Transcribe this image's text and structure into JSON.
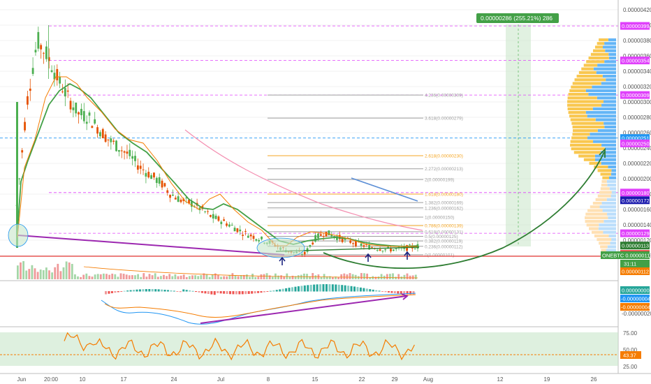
{
  "measure_label": "0.00000286 (255.21%) 286",
  "price_axis_labels": [
    "0.00000420",
    "0.00000400",
    "0.00000380",
    "0.00000360",
    "0.00000340",
    "0.00000320",
    "0.00000300",
    "0.00000280",
    "0.00000260",
    "0.00000240",
    "0.00000220",
    "0.00000200",
    "0.00000180",
    "0.00000160",
    "0.00000140",
    "0.00000120",
    "0.00000100"
  ],
  "price_tags": [
    {
      "text": "0.00000399",
      "color": "#e040fb",
      "price": 399
    },
    {
      "text": "0.00000354",
      "color": "#e040fb",
      "price": 354
    },
    {
      "text": "0.00000309",
      "color": "#e040fb",
      "price": 309
    },
    {
      "text": "0.00000251",
      "color": "#2196f3",
      "price": 253
    },
    {
      "text": "0.00000250",
      "color": "#e040fb",
      "price": 246
    },
    {
      "text": "0.00000180",
      "color": "#e040fb",
      "price": 182
    },
    {
      "text": "0.00000172",
      "color": "#1a1aad",
      "price": 172
    },
    {
      "text": "0.00000129",
      "color": "#e040fb",
      "price": 129
    },
    {
      "text": "0.00000113",
      "color": "#2e7d32",
      "price": 113
    },
    {
      "text": "0.00000112",
      "color": "#e53935",
      "price": 102
    }
  ],
  "symbol_tag": "ONEBTC",
  "symbol_price": "0.00000112",
  "countdown": "31:11",
  "volume_tag": "0.00000112",
  "macd_tags": [
    "0.00000000",
    "-0.00000004",
    "-0.00000004"
  ],
  "macd_axis_label": "-0.00000020",
  "rsi_axis_labels": [
    "75.00",
    "50.00",
    "25.00"
  ],
  "rsi_tag": "43.37",
  "fib_levels": [
    {
      "label": "4.236(0.00000309)",
      "price": 309,
      "color": "#9e9e9e"
    },
    {
      "label": "3.618(0.00000279)",
      "price": 279,
      "color": "#9e9e9e"
    },
    {
      "label": "2.618(0.00000230)",
      "price": 230,
      "color": "#f5a623"
    },
    {
      "label": "2.272(0.00000213)",
      "price": 213,
      "color": "#9e9e9e"
    },
    {
      "label": "2(0.00000199)",
      "price": 199,
      "color": "#9e9e9e"
    },
    {
      "label": "1.618(0.00000180)",
      "price": 180,
      "color": "#f5a623"
    },
    {
      "label": "1.382(0.00000169)",
      "price": 169,
      "color": "#9e9e9e"
    },
    {
      "label": "1.236(0.00000162)",
      "price": 162,
      "color": "#9e9e9e"
    },
    {
      "label": "1(0.00000150)",
      "price": 150,
      "color": "#9e9e9e"
    },
    {
      "label": "0.786(0.00000139)",
      "price": 139,
      "color": "#f5a623"
    },
    {
      "label": "0.618(0.00000131)",
      "price": 131,
      "color": "#9e9e9e"
    },
    {
      "label": "0.5(0.00000125)",
      "price": 125,
      "color": "#9e9e9e"
    },
    {
      "label": "0.382(0.00000119)",
      "price": 119,
      "color": "#9e9e9e"
    },
    {
      "label": "0.236(0.00000112)",
      "price": 112,
      "color": "#9e9e9e"
    },
    {
      "label": "0(0.00000101)",
      "price": 101,
      "color": "#9e9e9e"
    }
  ],
  "chart_data": {
    "type": "candlestick",
    "x_tick_labels": [
      "Jun",
      "20:00",
      "10",
      "17",
      "24",
      "Jul",
      "8",
      "15",
      "22",
      "29",
      "Aug",
      "12",
      "19",
      "26"
    ],
    "price_close_series": [
      165,
      300,
      380,
      360,
      330,
      305,
      285,
      280,
      265,
      250,
      240,
      230,
      215,
      205,
      195,
      180,
      172,
      168,
      160,
      150,
      145,
      138,
      130,
      125,
      120,
      115,
      108,
      104,
      102,
      122,
      130,
      125,
      120,
      116,
      112,
      110,
      108,
      108,
      110,
      112
    ],
    "price_scale_units": "x1e-8 BTC",
    "price_ylim": [
      100,
      420
    ],
    "rsi_ylim": [
      20,
      80
    ],
    "rsi_levels": [
      75,
      50,
      25
    ],
    "rsi_last": 43.37,
    "colors": {
      "up": "#4caf50",
      "down": "#e65100",
      "ema_fast": "#f57c00",
      "ema_slow": "#43a047",
      "sma": "#f06292",
      "support": "#9c27b0",
      "macd": "#2196f3",
      "signal": "#f57c00",
      "arc": "#2e7d32"
    }
  }
}
